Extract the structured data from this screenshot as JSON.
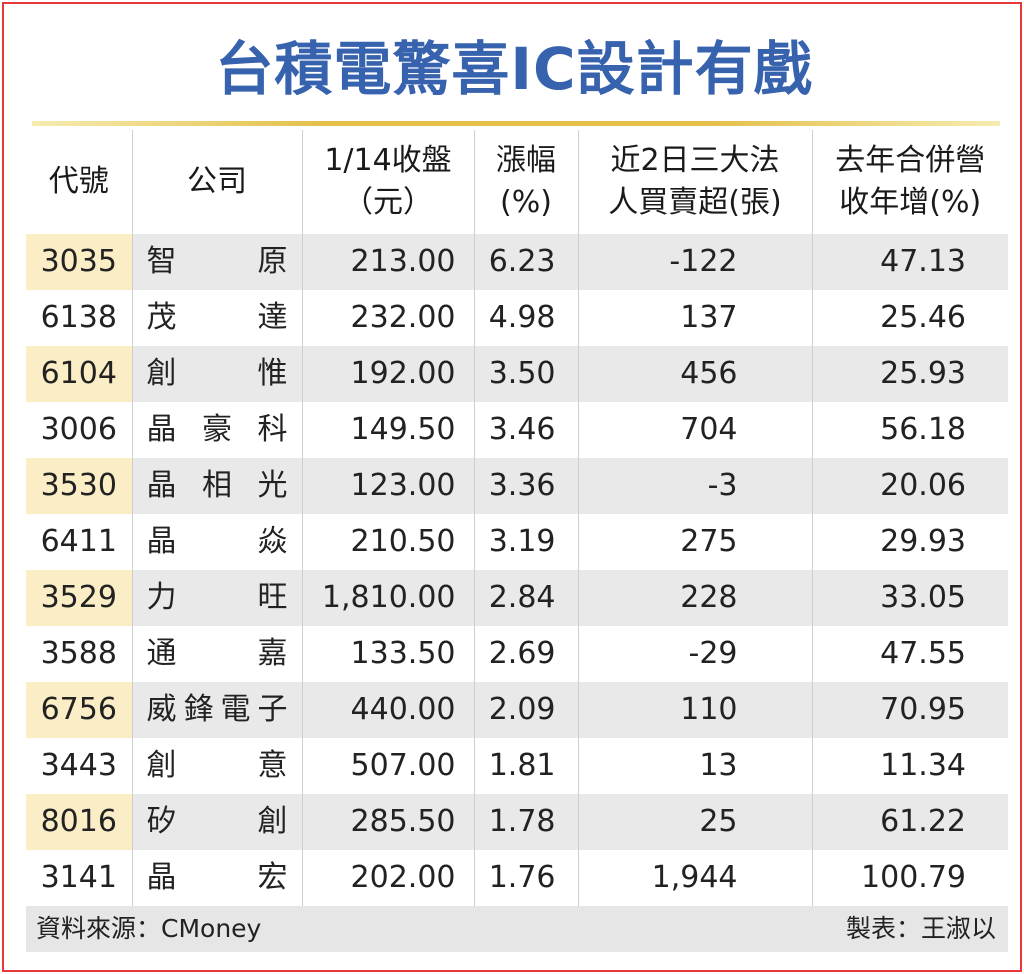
{
  "title": "台積電驚喜IC設計有戲",
  "headers": {
    "code": "代號",
    "company": "公司",
    "close": [
      "1/14收盤",
      "（元）"
    ],
    "change": [
      "漲幅",
      "(%)"
    ],
    "institutional": [
      "近2日三大法",
      "人買賣超(張)"
    ],
    "revenue_growth": [
      "去年合併營",
      "收年增(%)"
    ]
  },
  "rows": [
    {
      "code": "3035",
      "company": [
        "智",
        "原"
      ],
      "close": "213.00",
      "change": "6.23",
      "net": "-122",
      "growth": "47.13"
    },
    {
      "code": "6138",
      "company": [
        "茂",
        "達"
      ],
      "close": "232.00",
      "change": "4.98",
      "net": "137",
      "growth": "25.46"
    },
    {
      "code": "6104",
      "company": [
        "創",
        "惟"
      ],
      "close": "192.00",
      "change": "3.50",
      "net": "456",
      "growth": "25.93"
    },
    {
      "code": "3006",
      "company": [
        "晶",
        "豪",
        "科"
      ],
      "close": "149.50",
      "change": "3.46",
      "net": "704",
      "growth": "56.18"
    },
    {
      "code": "3530",
      "company": [
        "晶",
        "相",
        "光"
      ],
      "close": "123.00",
      "change": "3.36",
      "net": "-3",
      "growth": "20.06"
    },
    {
      "code": "6411",
      "company": [
        "晶",
        "焱"
      ],
      "close": "210.50",
      "change": "3.19",
      "net": "275",
      "growth": "29.93"
    },
    {
      "code": "3529",
      "company": [
        "力",
        "旺"
      ],
      "close": "1,810.00",
      "change": "2.84",
      "net": "228",
      "growth": "33.05"
    },
    {
      "code": "3588",
      "company": [
        "通",
        "嘉"
      ],
      "close": "133.50",
      "change": "2.69",
      "net": "-29",
      "growth": "47.55"
    },
    {
      "code": "6756",
      "company": [
        "威",
        "鋒",
        "電",
        "子"
      ],
      "close": "440.00",
      "change": "2.09",
      "net": "110",
      "growth": "70.95"
    },
    {
      "code": "3443",
      "company": [
        "創",
        "意"
      ],
      "close": "507.00",
      "change": "1.81",
      "net": "13",
      "growth": "11.34"
    },
    {
      "code": "8016",
      "company": [
        "矽",
        "創"
      ],
      "close": "285.50",
      "change": "1.78",
      "net": "25",
      "growth": "61.22"
    },
    {
      "code": "3141",
      "company": [
        "晶",
        "宏"
      ],
      "close": "202.00",
      "change": "1.76",
      "net": "1,944",
      "growth": "100.79"
    }
  ],
  "footer": {
    "source": "資料來源：CMoney",
    "maker": "製表：王淑以"
  },
  "colors": {
    "title": "#3762ad",
    "border": "#e63a3a",
    "code_highlight": "#fbeec6",
    "row_stripe": "#e9e9e9",
    "rule_gold": "#e4c04a"
  }
}
